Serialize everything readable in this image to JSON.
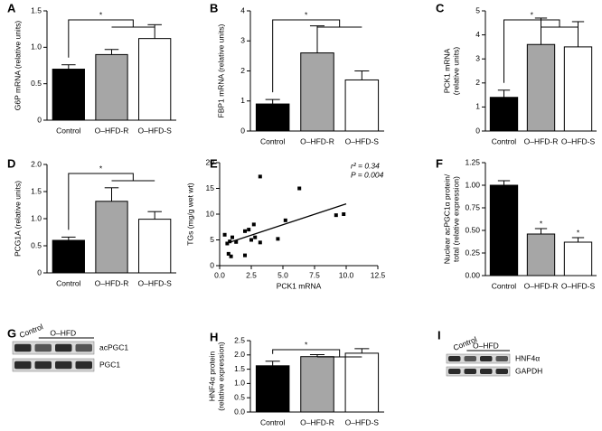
{
  "chart_data": [
    {
      "type": "bar",
      "panel": "A",
      "ylabel": [
        "G6P mRNA (relative units)"
      ],
      "categories": [
        "Control",
        "O–HFD-R",
        "O–HFD-S"
      ],
      "values": [
        0.7,
        0.9,
        1.12
      ],
      "errors": [
        0.06,
        0.07,
        0.19
      ],
      "colors": [
        "#000000",
        "#a6a6a6",
        "#ffffff"
      ],
      "ylim": [
        0,
        1.5
      ],
      "yticks": [
        0,
        0.5,
        {
          "value": 1,
          "label": "1.0"
        },
        1.5
      ],
      "bracket_label": "*"
    },
    {
      "type": "bar",
      "panel": "B",
      "ylabel": [
        "FBP1 mRNA (relative units)"
      ],
      "categories": [
        "Control",
        "O–HFD-R",
        "O–HFD-S"
      ],
      "values": [
        0.9,
        2.6,
        1.7
      ],
      "errors": [
        0.15,
        0.9,
        0.3
      ],
      "colors": [
        "#000000",
        "#a6a6a6",
        "#ffffff"
      ],
      "ylim": [
        0,
        4
      ],
      "yticks": [
        0,
        1,
        2,
        3,
        4
      ],
      "bracket_label": "*"
    },
    {
      "type": "bar",
      "panel": "C",
      "ylabel": [
        "PCK1 mRNA",
        "(relative units)"
      ],
      "categories": [
        "Control",
        "O–HFD-R",
        "O–HFD-S"
      ],
      "values": [
        1.4,
        3.6,
        3.5
      ],
      "errors": [
        0.3,
        1.1,
        1.05
      ],
      "colors": [
        "#000000",
        "#a6a6a6",
        "#ffffff"
      ],
      "ylim": [
        0,
        5
      ],
      "yticks": [
        0,
        1,
        2,
        3,
        4,
        5
      ],
      "bracket_label": "*"
    },
    {
      "type": "bar",
      "panel": "D",
      "ylabel": [
        "PCG1A (relative units)"
      ],
      "categories": [
        "Control",
        "O–HFD-R",
        "O–HFD-S"
      ],
      "values": [
        0.6,
        1.32,
        0.99
      ],
      "errors": [
        0.06,
        0.25,
        0.14
      ],
      "colors": [
        "#000000",
        "#a6a6a6",
        "#ffffff"
      ],
      "ylim": [
        0,
        2
      ],
      "yticks": [
        0,
        0.5,
        {
          "value": 1,
          "label": "1.0"
        },
        1.5,
        {
          "value": 2,
          "label": "2.0"
        }
      ],
      "bracket_label": "*"
    },
    {
      "type": "scatter",
      "panel": "E",
      "xlabel": "PCK1 mRNA",
      "ylabel": [
        "TGs (mg/g wet wt)"
      ],
      "x": [
        0.4,
        0.6,
        0.8,
        0.7,
        0.9,
        1.0,
        1.3,
        2.0,
        2.0,
        2.3,
        2.5,
        2.7,
        2.8,
        3.2,
        3.2,
        4.6,
        5.2,
        6.3,
        9.2,
        9.8
      ],
      "values": [
        6,
        4.3,
        4.7,
        2.3,
        1.8,
        5.5,
        4.6,
        6.7,
        2.0,
        7.0,
        5.0,
        8.0,
        5.5,
        4.5,
        17.3,
        5.2,
        8.8,
        15.0,
        9.8,
        10.0
      ],
      "color": "#000000",
      "fit": {
        "x": [
          0.5,
          10
        ],
        "values": [
          4.3,
          12
        ]
      },
      "annotations": [
        "r² = 0.34",
        "P = 0.004"
      ],
      "xlim": [
        0,
        12.5
      ],
      "xticks": [
        {
          "value": 0,
          "label": "0.0"
        },
        2.5,
        {
          "value": 5,
          "label": "5.0"
        },
        7.5,
        {
          "value": 10,
          "label": "10.0"
        },
        12.5
      ],
      "ylim": [
        0,
        20
      ],
      "yticks": [
        0,
        5,
        10,
        15,
        20
      ]
    },
    {
      "type": "bar",
      "panel": "F",
      "ylabel": [
        "Nuclear acPGC1α protein/",
        "total (relative expression)"
      ],
      "categories": [
        "Control",
        "O–HFD-R",
        "O–HFD-S"
      ],
      "values": [
        1.0,
        0.46,
        0.37
      ],
      "errors": [
        0.05,
        0.06,
        0.05
      ],
      "colors": [
        "#000000",
        "#a6a6a6",
        "#ffffff"
      ],
      "ylim": [
        0,
        1.25
      ],
      "yticks": [
        {
          "value": 0,
          "label": "0.00"
        },
        0.25,
        {
          "value": 0.5,
          "label": "0.50"
        },
        0.75,
        {
          "value": 1,
          "label": "1.00"
        },
        1.25
      ],
      "annotations": [
        null,
        "*",
        "*"
      ]
    },
    {
      "type": "bar",
      "panel": "H",
      "ylabel": [
        "HNF4α protein",
        "(relative expression)"
      ],
      "categories": [
        "Control",
        "O–HFD-R",
        "O–HFD-S"
      ],
      "values": [
        1.62,
        1.94,
        2.06
      ],
      "errors": [
        0.16,
        0.07,
        0.16
      ],
      "colors": [
        "#000000",
        "#a6a6a6",
        "#ffffff"
      ],
      "ylim": [
        0,
        2.5
      ],
      "yticks": [
        {
          "value": 0,
          "label": "0.0"
        },
        0.5,
        {
          "value": 1,
          "label": "1.0"
        },
        1.5,
        {
          "value": 2,
          "label": "2.0"
        },
        2.5
      ],
      "bracket_label": "*"
    }
  ],
  "blots": [
    {
      "panel": "G",
      "lanes": [
        "Control",
        "O–HFD"
      ],
      "rows": [
        "acPGC1",
        "PGC1"
      ]
    },
    {
      "panel": "I",
      "lanes": [
        "Control",
        "O–HFD"
      ],
      "rows": [
        "HNF4α",
        "GAPDH"
      ]
    }
  ]
}
